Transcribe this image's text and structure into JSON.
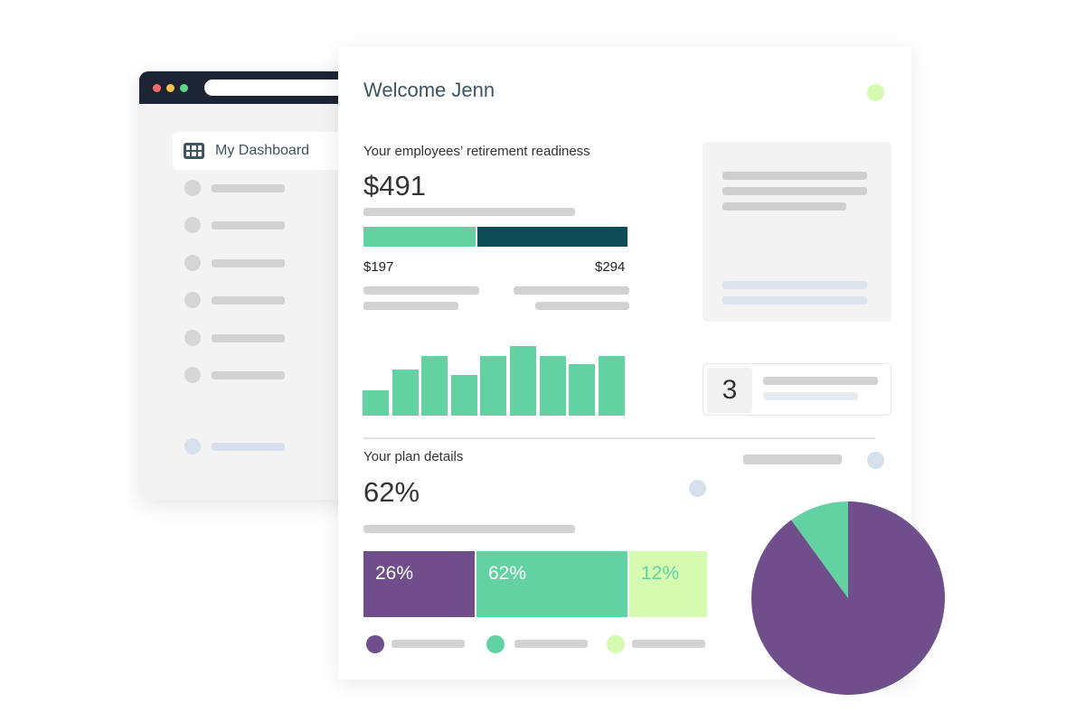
{
  "sidebar": {
    "active_label": "My Dashboard",
    "active_icon": "dashboard-grid-icon"
  },
  "header": {
    "welcome": "Welcome Jenn"
  },
  "readiness": {
    "title": "Your employees’ retirement readiness",
    "total": "$491",
    "left_value": "$197",
    "right_value": "$294",
    "left_amount": 197,
    "right_amount": 294
  },
  "histogram": {
    "values": [
      28,
      51,
      66,
      45,
      66,
      77,
      66,
      57,
      66
    ]
  },
  "counter": {
    "value": "3"
  },
  "plan": {
    "title": "Your plan details",
    "percent": "62%",
    "segments": [
      {
        "label": "26%",
        "value": 26,
        "color": "#6f4e8b",
        "text_color": "#ffffff"
      },
      {
        "label": "62%",
        "value": 62,
        "color": "#63d2a3",
        "text_color": "#ffffff"
      },
      {
        "label": "12%",
        "value": 12,
        "color": "#d5fbb1",
        "text_color": "#63d2a3"
      }
    ]
  },
  "pie": {
    "slices": [
      {
        "value": 90,
        "color": "#6f4e8b"
      },
      {
        "value": 10,
        "color": "#63d2a3"
      }
    ]
  },
  "colors": {
    "purple": "#6f4e8b",
    "green": "#63d2a3",
    "lime": "#d5fbb1",
    "teal_dark": "#0c4c55",
    "nav_bar": "#1d2535"
  }
}
